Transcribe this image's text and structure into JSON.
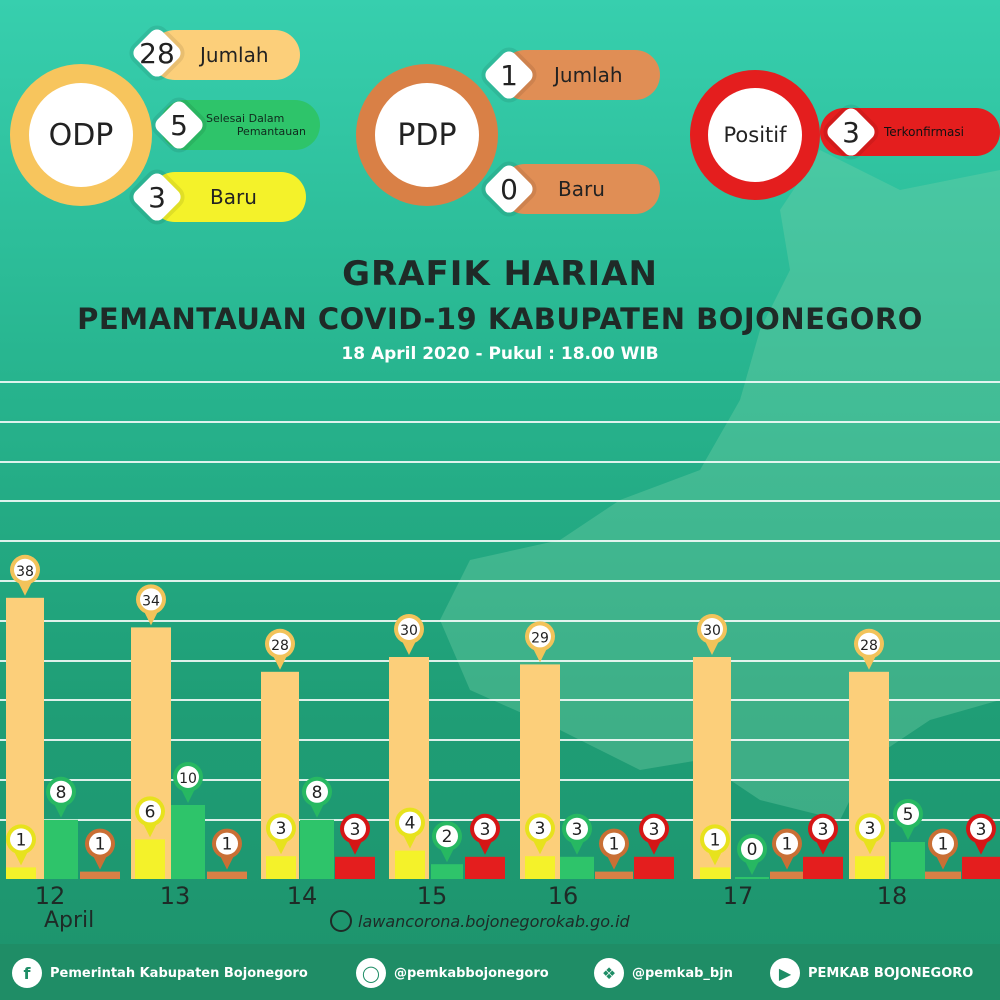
{
  "summary": {
    "odp": {
      "label": "ODP",
      "jumlah_value": "28",
      "jumlah_label": "Jumlah",
      "selesai_value": "5",
      "selesai_label_1": "Selesai Dalam",
      "selesai_label_2": "Pemantauan",
      "baru_value": "3",
      "baru_label": "Baru"
    },
    "pdp": {
      "label": "PDP",
      "jumlah_value": "1",
      "jumlah_label": "Jumlah",
      "baru_value": "0",
      "baru_label": "Baru"
    },
    "positif": {
      "label": "Positif",
      "value": "3",
      "value_label": "Terkonfirmasi"
    }
  },
  "header": {
    "title": "GRAFIK HARIAN",
    "subtitle": "PEMANTAUAN COVID-19 KABUPATEN BOJONEGORO",
    "date": "18 April 2020 - Pukul : 18.00 WIB"
  },
  "colors": {
    "odp_total": "#fccf7a",
    "odp_new": "#f4f22a",
    "odp_done": "#2ec46a",
    "pdp": "#d98046",
    "positif": "#e41e1e"
  },
  "chart_data": {
    "type": "bar",
    "categories": [
      "12",
      "13",
      "14",
      "15",
      "16",
      "17",
      "18"
    ],
    "month_label": "April",
    "series": [
      {
        "key": "odp_total",
        "values": [
          38,
          34,
          28,
          30,
          29,
          30,
          28
        ]
      },
      {
        "key": "odp_new",
        "values": [
          1,
          6,
          3,
          4,
          3,
          1,
          3
        ]
      },
      {
        "key": "odp_done",
        "values": [
          8,
          10,
          8,
          2,
          3,
          0,
          5
        ]
      },
      {
        "key": "pdp",
        "values": [
          1,
          1,
          null,
          null,
          1,
          1,
          1
        ]
      },
      {
        "key": "positif",
        "values": [
          null,
          null,
          3,
          3,
          3,
          3,
          3
        ]
      }
    ],
    "ylim": [
      0,
      40
    ],
    "grid": true
  },
  "footer": {
    "website": "lawancorona.bojonegorokab.go.id",
    "facebook": "Pemerintah Kabupaten Bojonegoro",
    "instagram": "@pemkabbojonegoro",
    "twitter": "@pemkab_bjn",
    "youtube": "PEMKAB BOJONEGORO"
  }
}
